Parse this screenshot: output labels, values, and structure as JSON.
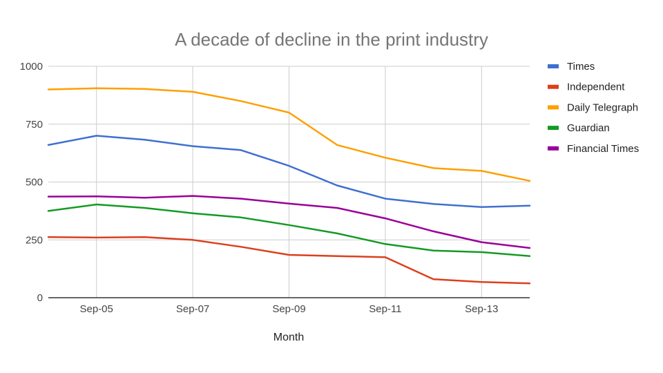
{
  "chart_data": {
    "type": "line",
    "title": "A decade of decline in the print industry",
    "xlabel": "Month",
    "ylabel": "",
    "x": [
      "Sep-04",
      "Sep-05",
      "Sep-06",
      "Sep-07",
      "Sep-08",
      "Sep-09",
      "Sep-10",
      "Sep-11",
      "Sep-12",
      "Sep-13",
      "Sep-14"
    ],
    "x_tick_labels": [
      "Sep-05",
      "Sep-07",
      "Sep-09",
      "Sep-11",
      "Sep-13"
    ],
    "y_ticks": [
      "0",
      "250",
      "500",
      "750",
      "1000"
    ],
    "ylim": [
      0,
      1000
    ],
    "grid": true,
    "legend_position": "right",
    "series": [
      {
        "name": "Times",
        "color": "#3f6fd1",
        "values": [
          660,
          700,
          683,
          655,
          638,
          570,
          485,
          428,
          405,
          392,
          398
        ]
      },
      {
        "name": "Independent",
        "color": "#dc3f1c",
        "values": [
          262,
          260,
          262,
          250,
          220,
          185,
          180,
          175,
          80,
          68,
          62
        ]
      },
      {
        "name": "Daily Telegraph",
        "color": "#ff9f00",
        "values": [
          900,
          905,
          902,
          890,
          850,
          800,
          660,
          605,
          560,
          548,
          505
        ]
      },
      {
        "name": "Guardian",
        "color": "#139a24",
        "values": [
          375,
          403,
          388,
          365,
          347,
          314,
          278,
          232,
          204,
          197,
          180
        ]
      },
      {
        "name": "Financial Times",
        "color": "#990099",
        "values": [
          437,
          438,
          432,
          440,
          428,
          407,
          388,
          343,
          287,
          240,
          215
        ]
      }
    ]
  }
}
